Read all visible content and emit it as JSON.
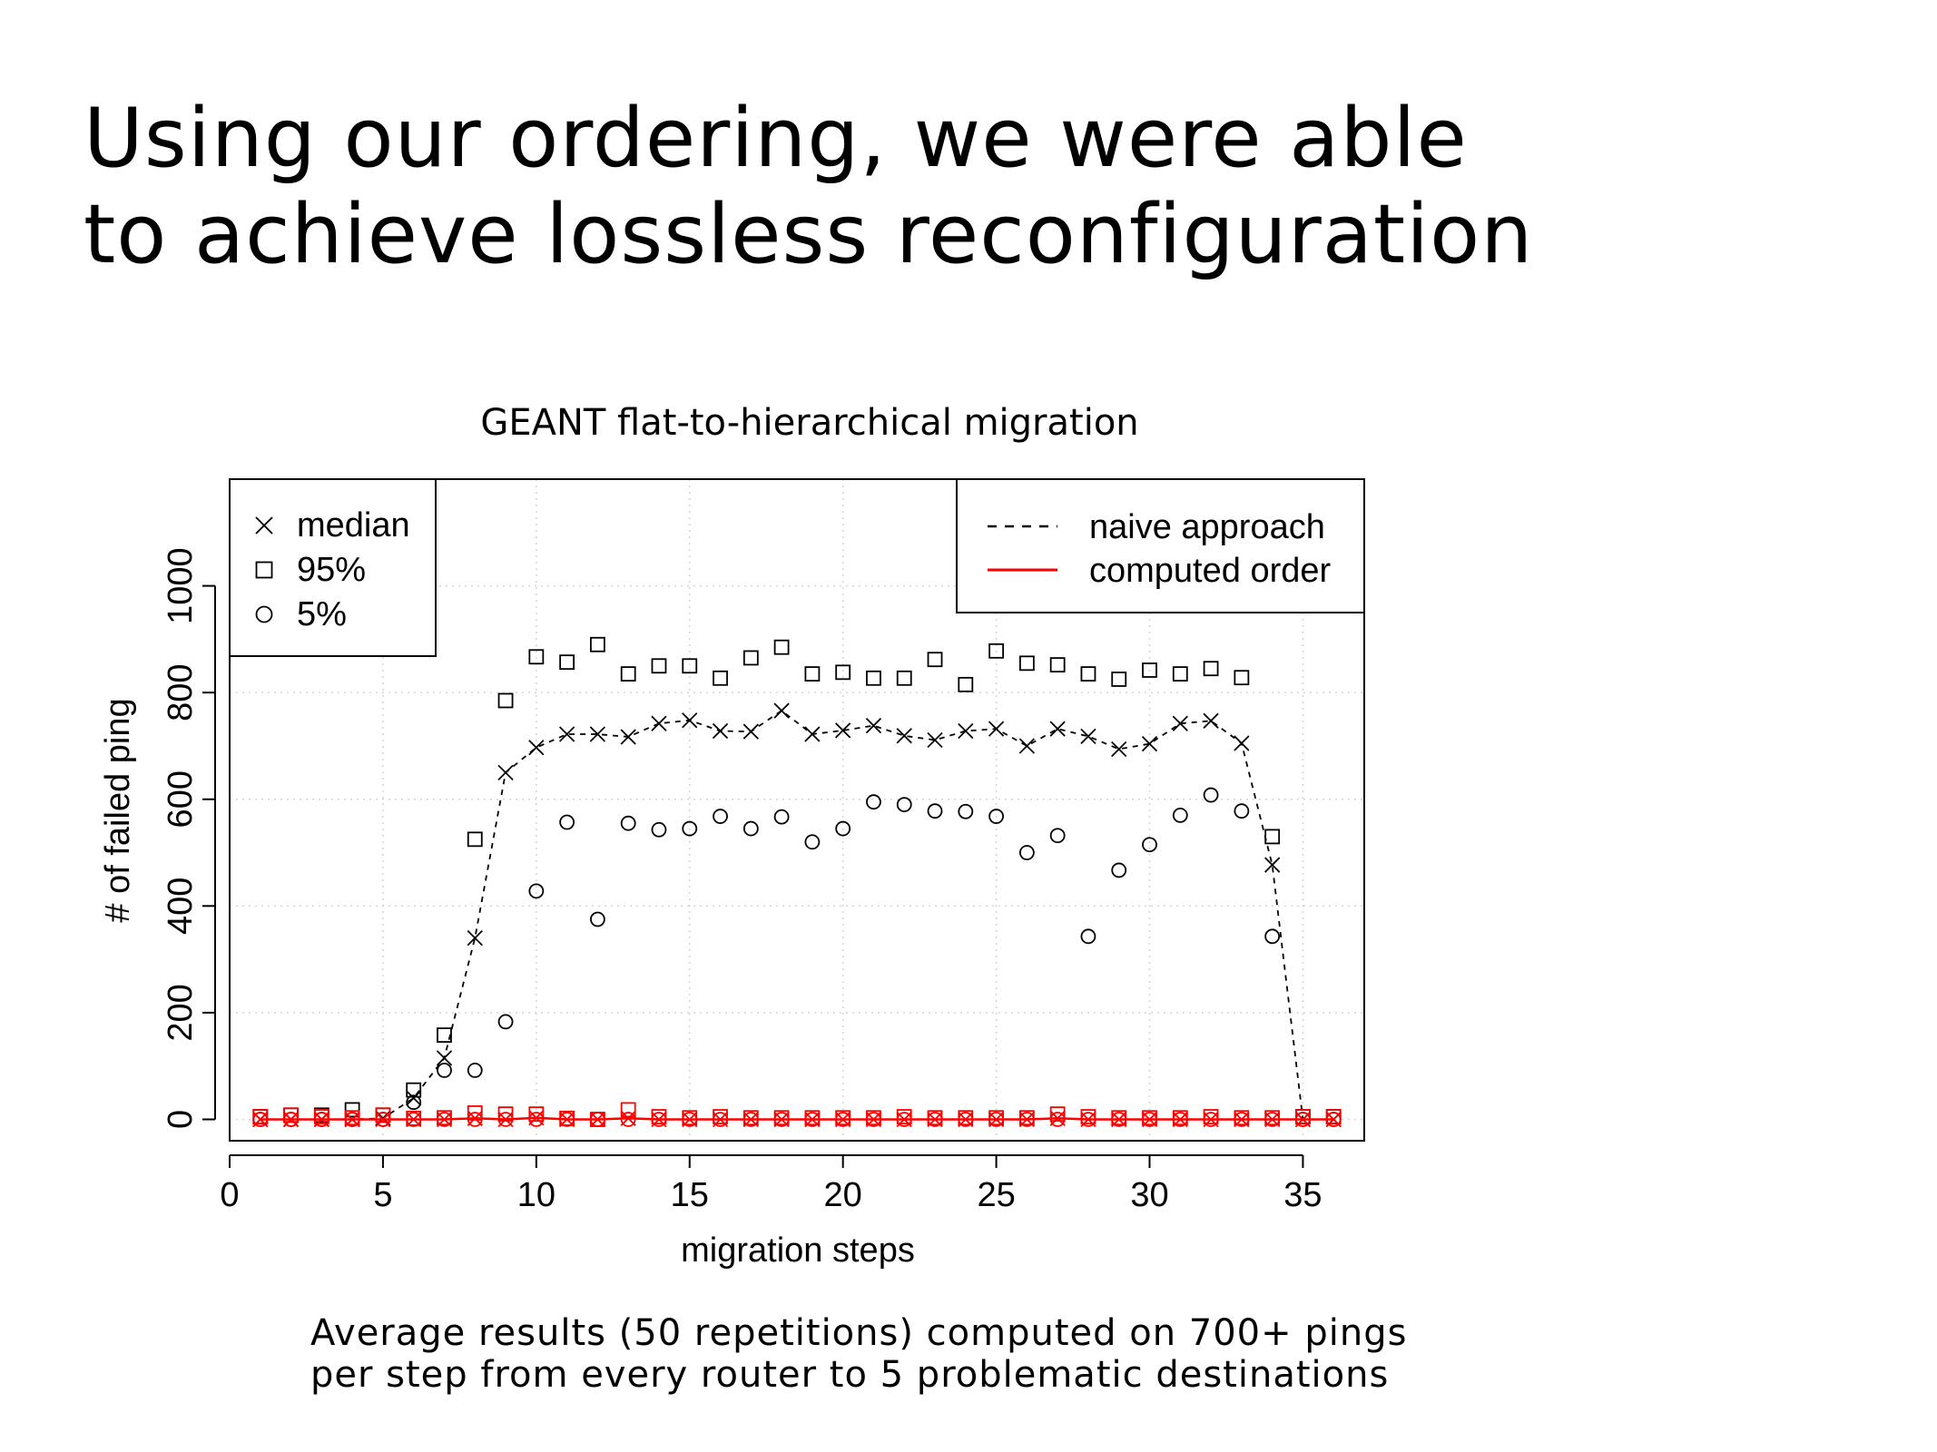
{
  "slide": {
    "title_lines": [
      "Using our ordering, we were able",
      "to achieve lossless reconfiguration"
    ],
    "caption_lines": [
      "Average results (50 repetitions) computed on 700+ pings",
      "per step from every router to 5 problematic destinations"
    ]
  },
  "chart_data": {
    "type": "line",
    "title": "GEANT flat-to-hierarchical migration",
    "xlabel": "migration steps",
    "ylabel": "# of failed ping",
    "xlim": [
      0,
      37
    ],
    "ylim": [
      -40,
      1200
    ],
    "xticks": [
      0,
      5,
      10,
      15,
      20,
      25,
      30,
      35
    ],
    "yticks": [
      0,
      200,
      400,
      600,
      800,
      1000
    ],
    "grid": true,
    "x": [
      1,
      2,
      3,
      4,
      5,
      6,
      7,
      8,
      9,
      10,
      11,
      12,
      13,
      14,
      15,
      16,
      17,
      18,
      19,
      20,
      21,
      22,
      23,
      24,
      25,
      26,
      27,
      28,
      29,
      30,
      31,
      32,
      33,
      34,
      35,
      36
    ],
    "series": [
      {
        "name": "naive approach",
        "color": "#000000",
        "line_style": "dashed",
        "median": [
          0,
          0,
          0,
          0,
          2,
          40,
          115,
          340,
          650,
          697,
          722,
          722,
          717,
          742,
          748,
          728,
          727,
          766,
          722,
          729,
          738,
          719,
          711,
          728,
          732,
          700,
          732,
          718,
          694,
          704,
          742,
          747,
          705,
          477,
          0,
          0
        ],
        "p95": [
          5,
          8,
          8,
          18,
          8,
          55,
          158,
          525,
          785,
          867,
          857,
          890,
          835,
          850,
          850,
          827,
          865,
          885,
          835,
          838,
          827,
          827,
          862,
          815,
          878,
          855,
          852,
          835,
          825,
          842,
          835,
          845,
          828,
          530,
          5,
          5
        ],
        "p5": [
          0,
          0,
          0,
          0,
          0,
          32,
          92,
          92,
          183,
          428,
          557,
          375,
          555,
          543,
          545,
          568,
          545,
          567,
          520,
          545,
          595,
          590,
          578,
          577,
          568,
          500,
          532,
          343,
          467,
          515,
          570,
          608,
          578,
          343,
          0,
          0
        ]
      },
      {
        "name": "computed order",
        "color": "#ff0000",
        "line_style": "solid",
        "median": [
          0,
          0,
          0,
          0,
          0,
          0,
          0,
          2,
          0,
          3,
          0,
          0,
          2,
          0,
          0,
          0,
          0,
          0,
          0,
          0,
          0,
          0,
          0,
          0,
          0,
          0,
          2,
          0,
          0,
          0,
          0,
          0,
          0,
          0,
          0,
          0
        ],
        "p95": [
          5,
          8,
          5,
          3,
          8,
          2,
          3,
          12,
          10,
          10,
          2,
          0,
          18,
          5,
          3,
          5,
          3,
          3,
          3,
          3,
          3,
          5,
          3,
          3,
          3,
          3,
          10,
          5,
          3,
          3,
          3,
          5,
          3,
          3,
          5,
          5
        ],
        "p5": [
          0,
          0,
          0,
          0,
          0,
          0,
          0,
          0,
          0,
          0,
          0,
          0,
          0,
          0,
          0,
          0,
          0,
          0,
          0,
          0,
          0,
          0,
          0,
          0,
          0,
          0,
          0,
          0,
          0,
          0,
          0,
          0,
          0,
          0,
          0,
          0
        ]
      }
    ],
    "legend_markers": {
      "position": "top-left",
      "entries": [
        {
          "symbol": "x-mark",
          "label": "median"
        },
        {
          "symbol": "square",
          "label": "95%"
        },
        {
          "symbol": "circle",
          "label": "5%"
        }
      ]
    },
    "legend_lines": {
      "position": "top-right",
      "entries": [
        {
          "label": "naive approach",
          "color": "#000000",
          "dash": true
        },
        {
          "label": "computed order",
          "color": "#ff0000",
          "dash": false
        }
      ]
    }
  }
}
